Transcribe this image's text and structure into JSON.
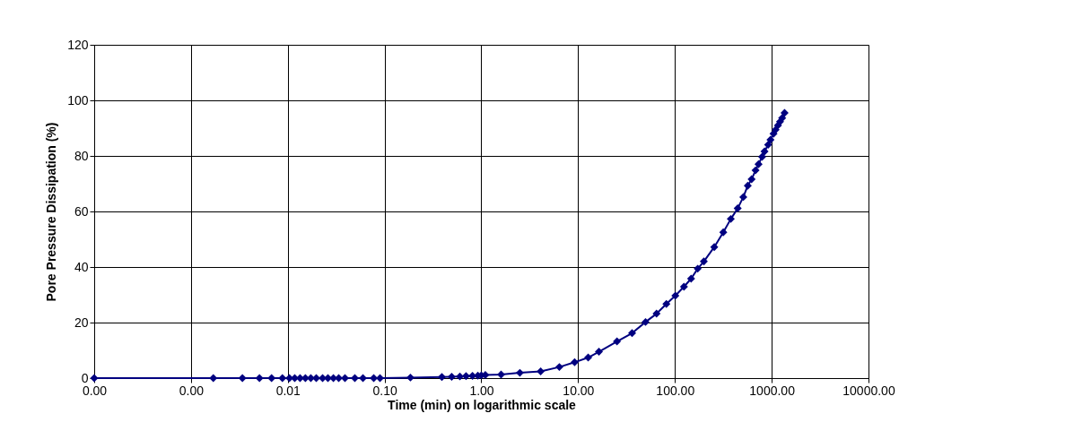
{
  "chart_data": {
    "type": "line",
    "xlabel": "Time (min) on logarithmic scale",
    "ylabel": "Pore Pressure Dissipation (%)",
    "log": "x",
    "grid": true,
    "marker": "diamond",
    "line_style": "solid",
    "xlim": [
      0.0001,
      10000
    ],
    "ylim": [
      0,
      120
    ],
    "xticks": [
      {
        "value": 0.0001,
        "label": "0.00"
      },
      {
        "value": 0.001,
        "label": "0.00"
      },
      {
        "value": 0.01,
        "label": "0.01"
      },
      {
        "value": 0.1,
        "label": "0.10"
      },
      {
        "value": 1,
        "label": "1.00"
      },
      {
        "value": 10,
        "label": "10.00"
      },
      {
        "value": 100,
        "label": "100.00"
      },
      {
        "value": 1000,
        "label": "1000.00"
      },
      {
        "value": 10000,
        "label": "10000.00"
      }
    ],
    "yticks": [
      0,
      20,
      40,
      60,
      80,
      100,
      120
    ],
    "x": [
      0.0001,
      0.0017,
      0.0034,
      0.0051,
      0.0068,
      0.0088,
      0.0104,
      0.0118,
      0.0134,
      0.0152,
      0.0173,
      0.0197,
      0.0229,
      0.026,
      0.0296,
      0.0336,
      0.039,
      0.0493,
      0.0598,
      0.0773,
      0.0897,
      0.185,
      0.391,
      0.494,
      0.6,
      0.695,
      0.81,
      0.92,
      1.0,
      1.1,
      1.6,
      2.5,
      4.1,
      6.4,
      9.2,
      12.7,
      16.4,
      25.2,
      36.1,
      49.7,
      64.6,
      81.6,
      101,
      124,
      147,
      172,
      199,
      255,
      316,
      378,
      445,
      509,
      566,
      620,
      681,
      731,
      796,
      843,
      918,
      971,
      1044,
      1097,
      1161,
      1219,
      1282,
      1358
    ],
    "series": [
      {
        "color": "#000080",
        "values": [
          0,
          0,
          0,
          0,
          0,
          0,
          0,
          0,
          0,
          0,
          0,
          0,
          0,
          0,
          0,
          0,
          0,
          0,
          0,
          0,
          0,
          0.2,
          0.4,
          0.5,
          0.6,
          0.7,
          0.8,
          0.9,
          1.0,
          1.1,
          1.3,
          1.9,
          2.4,
          4.0,
          5.7,
          7.4,
          9.5,
          13.2,
          16.2,
          20.2,
          23.2,
          26.7,
          29.7,
          32.9,
          35.8,
          39.4,
          42.0,
          47.2,
          52.5,
          57.3,
          61.1,
          65.2,
          69.3,
          71.6,
          74.8,
          77.0,
          79.7,
          81.6,
          84.0,
          85.8,
          88.0,
          89.4,
          91.0,
          92.3,
          93.6,
          95.5
        ]
      }
    ]
  }
}
